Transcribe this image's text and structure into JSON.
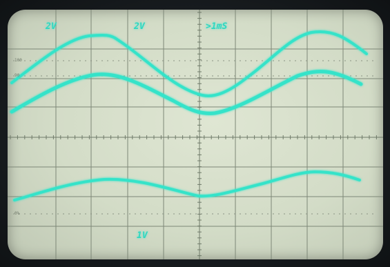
{
  "scope": {
    "ch1_scale": "2V",
    "ch2_scale": "2V",
    "timebase": ">1mS",
    "ch3_scale": "1V",
    "level_marks": [
      "100",
      "90",
      "0%"
    ],
    "trace_color": "#35e3c9"
  }
}
